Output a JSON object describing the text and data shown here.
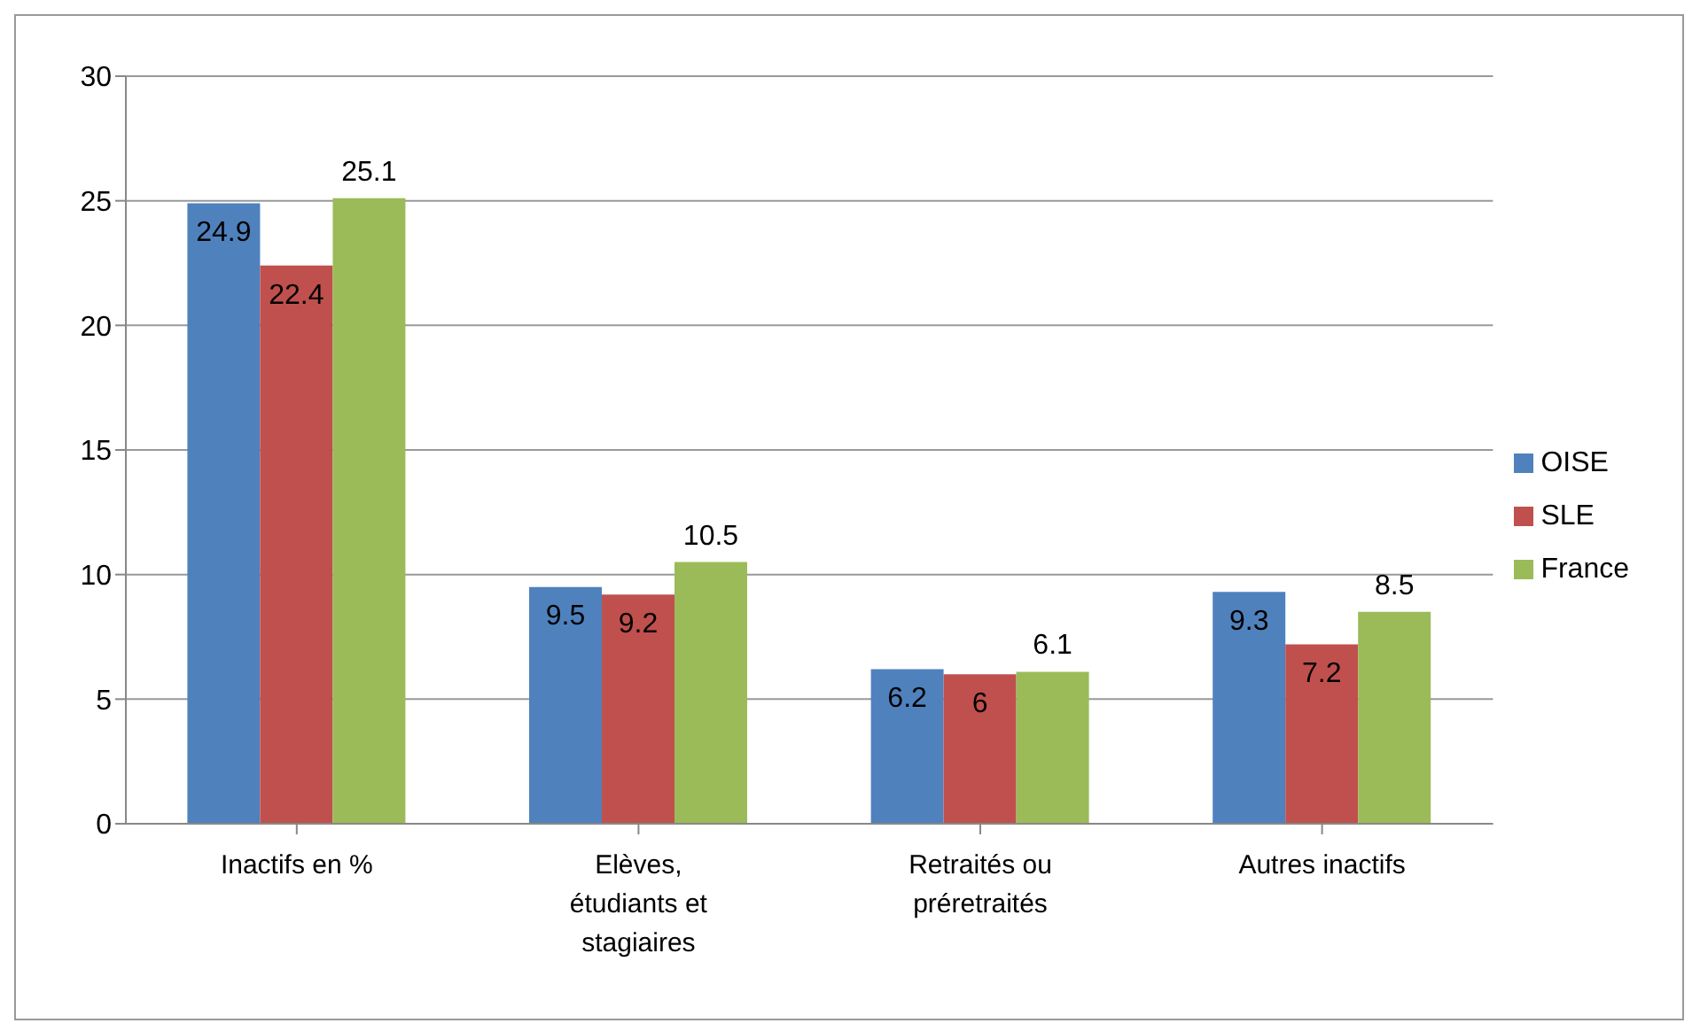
{
  "chart_data": {
    "type": "bar",
    "categories": [
      "Inactifs en %",
      "Elèves, étudiants et stagiaires",
      "Retraités ou préretraités",
      "Autres inactifs"
    ],
    "series": [
      {
        "name": "OISE",
        "color": "#4f81bd",
        "values": [
          24.9,
          9.5,
          6.2,
          9.3
        ]
      },
      {
        "name": "SLE",
        "color": "#c0504d",
        "values": [
          22.4,
          9.2,
          6,
          7.2
        ]
      },
      {
        "name": "France",
        "color": "#9bbb59",
        "values": [
          25.1,
          10.5,
          6.1,
          8.5
        ]
      }
    ],
    "ylim": [
      0,
      30
    ],
    "yticks": [
      0,
      5,
      10,
      15,
      20,
      25,
      30
    ],
    "grid": "y",
    "legend": "right",
    "data_labels": true
  }
}
